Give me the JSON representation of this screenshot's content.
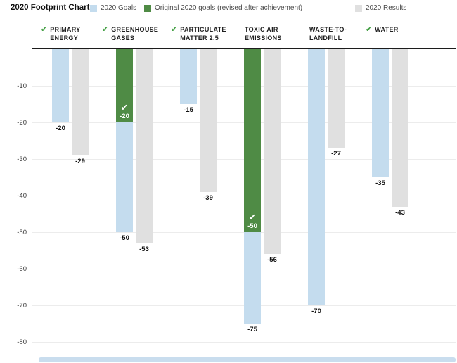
{
  "header": {
    "title": "2020 Footprint Chart",
    "legend": [
      {
        "name": "goals-swatch",
        "label": "2020 Goals",
        "color": "#c4dcee"
      },
      {
        "name": "revised-swatch",
        "label": "Original 2020 goals (revised after achievement)",
        "color": "#4f8b45"
      },
      {
        "name": "results-swatch",
        "label": "2020 Results",
        "color": "#e0e0e0"
      }
    ]
  },
  "chart_data": {
    "type": "bar",
    "title": "2020 Footprint Chart",
    "orientation": "vertical-negative",
    "categories": [
      "PRIMARY ENERGY",
      "GREENHOUSE GASES",
      "PARTICULATE MATTER 2.5",
      "TOXIC AIR EMISSIONS",
      "WASTE-TO-LANDFILL",
      "WATER"
    ],
    "category_lines": [
      [
        "PRIMARY",
        "ENERGY"
      ],
      [
        "GREENHOUSE",
        "GASES"
      ],
      [
        "PARTICULATE",
        "MATTER 2.5"
      ],
      [
        "TOXIC AIR",
        "EMISSIONS"
      ],
      [
        "WASTE-TO-",
        "LANDFILL"
      ],
      [
        "WATER"
      ]
    ],
    "achieved": [
      true,
      true,
      true,
      false,
      false,
      true
    ],
    "check_glyph": "✔",
    "series": [
      {
        "name": "2020 Goals",
        "color": "#c4dcee",
        "values": [
          -20,
          -50,
          -15,
          -75,
          -70,
          -35
        ]
      },
      {
        "name": "Original 2020 goals (revised after achievement)",
        "color": "#4f8b45",
        "values": [
          null,
          -20,
          null,
          -50,
          null,
          null
        ]
      },
      {
        "name": "2020 Results",
        "color": "#e0e0e0",
        "values": [
          -29,
          -53,
          -39,
          -56,
          -27,
          -43
        ]
      }
    ],
    "ylim": [
      -80,
      0
    ],
    "yticks": [
      -10,
      -20,
      -30,
      -40,
      -50,
      -60,
      -70,
      -80
    ],
    "grid": true,
    "legend_position": "top",
    "colors": {
      "goal_blue": "#c4dcee",
      "revised_green": "#4f8b45",
      "results_gray": "#e0e0e0",
      "check_green": "#3e9d3e",
      "axis": "#1c1c1c",
      "gridline": "#ececec"
    }
  }
}
